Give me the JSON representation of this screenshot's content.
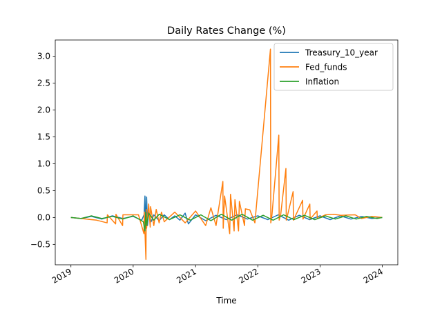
{
  "chart_data": {
    "type": "line",
    "title": "Daily Rates Change (%)",
    "xlabel": "Time",
    "ylabel": "",
    "xlim": [
      "2018-10-01",
      "2024-04-01"
    ],
    "ylim": [
      -0.88,
      3.3
    ],
    "x_ticks": [
      {
        "value": "2019-01-01",
        "label": "2019"
      },
      {
        "value": "2020-01-01",
        "label": "2020"
      },
      {
        "value": "2021-01-01",
        "label": "2021"
      },
      {
        "value": "2022-01-01",
        "label": "2022"
      },
      {
        "value": "2023-01-01",
        "label": "2023"
      },
      {
        "value": "2024-01-01",
        "label": "2024"
      }
    ],
    "y_ticks": [
      -0.5,
      0.0,
      0.5,
      1.0,
      1.5,
      2.0,
      2.5,
      3.0
    ],
    "y_tick_labels": [
      "−0.5",
      "0.0",
      "0.5",
      "1.0",
      "1.5",
      "2.0",
      "2.5",
      "3.0"
    ],
    "legend_position": "upper-right",
    "grid": false,
    "series": [
      {
        "name": "Treasury_10_year",
        "color": "#1f77b4",
        "x": [
          "2019-01-01",
          "2019-03-01",
          "2019-05-01",
          "2019-07-01",
          "2019-09-01",
          "2019-11-01",
          "2020-01-01",
          "2020-02-20",
          "2020-03-05",
          "2020-03-10",
          "2020-03-15",
          "2020-03-20",
          "2020-03-25",
          "2020-04-01",
          "2020-04-15",
          "2020-05-01",
          "2020-06-01",
          "2020-07-01",
          "2020-08-01",
          "2020-09-01",
          "2020-10-01",
          "2020-11-01",
          "2020-11-20",
          "2021-01-01",
          "2021-03-01",
          "2021-05-01",
          "2021-07-01",
          "2021-09-01",
          "2021-11-01",
          "2022-01-01",
          "2022-03-01",
          "2022-05-01",
          "2022-07-01",
          "2022-09-01",
          "2022-11-01",
          "2023-01-01",
          "2023-03-01",
          "2023-05-01",
          "2023-07-01",
          "2023-09-01",
          "2023-11-01",
          "2024-01-01"
        ],
        "values": [
          0.0,
          -0.02,
          0.02,
          -0.03,
          0.03,
          -0.02,
          0.02,
          -0.05,
          0.05,
          0.4,
          -0.2,
          0.38,
          -0.15,
          0.1,
          -0.08,
          0.05,
          -0.06,
          0.05,
          -0.04,
          0.03,
          -0.05,
          0.08,
          -0.12,
          0.05,
          -0.06,
          0.04,
          -0.04,
          0.05,
          -0.03,
          0.03,
          -0.04,
          0.05,
          -0.05,
          0.04,
          -0.04,
          0.03,
          -0.04,
          0.03,
          -0.03,
          0.02,
          -0.02,
          0.0
        ]
      },
      {
        "name": "Fed_funds",
        "color": "#ff7f0e",
        "x": [
          "2019-01-01",
          "2019-06-01",
          "2019-08-01",
          "2019-08-03",
          "2019-09-20",
          "2019-09-22",
          "2019-10-31",
          "2019-11-02",
          "2020-02-01",
          "2020-03-04",
          "2020-03-06",
          "2020-03-16",
          "2020-03-18",
          "2020-03-20",
          "2020-04-01",
          "2020-04-10",
          "2020-04-12",
          "2020-05-01",
          "2020-05-15",
          "2020-06-01",
          "2020-06-15",
          "2020-07-01",
          "2020-09-01",
          "2020-11-01",
          "2021-01-01",
          "2021-03-01",
          "2021-04-01",
          "2021-05-01",
          "2021-06-10",
          "2021-06-12",
          "2021-06-20",
          "2021-07-20",
          "2021-07-25",
          "2021-08-15",
          "2021-08-20",
          "2021-09-10",
          "2021-09-15",
          "2021-10-15",
          "2021-10-20",
          "2021-11-15",
          "2021-12-15",
          "2022-03-16",
          "2022-03-18",
          "2022-03-25",
          "2022-05-04",
          "2022-05-06",
          "2022-05-15",
          "2022-06-15",
          "2022-06-17",
          "2022-06-25",
          "2022-07-27",
          "2022-07-29",
          "2022-09-21",
          "2022-09-23",
          "2022-11-02",
          "2022-11-04",
          "2022-12-14",
          "2022-12-16",
          "2023-02-01",
          "2023-03-22",
          "2023-05-03",
          "2023-07-26",
          "2023-09-01",
          "2023-11-01",
          "2024-01-01"
        ],
        "values": [
          0.0,
          -0.05,
          -0.1,
          0.05,
          -0.12,
          0.06,
          -0.15,
          0.05,
          0.05,
          -0.3,
          0.1,
          -0.78,
          0.15,
          -0.2,
          0.25,
          -0.18,
          0.2,
          -0.15,
          0.15,
          -0.1,
          0.1,
          -0.08,
          0.1,
          -0.1,
          0.12,
          -0.15,
          0.18,
          -0.15,
          0.67,
          -0.2,
          0.4,
          -0.3,
          0.43,
          -0.25,
          0.33,
          -0.25,
          0.3,
          -0.15,
          0.16,
          0.14,
          -0.1,
          3.13,
          -0.1,
          0.05,
          1.53,
          -0.05,
          0.05,
          0.91,
          -0.05,
          0.05,
          0.48,
          -0.05,
          0.32,
          -0.03,
          0.25,
          -0.03,
          0.12,
          -0.02,
          0.05,
          0.06,
          0.04,
          0.05,
          -0.02,
          0.02,
          0.0
        ]
      },
      {
        "name": "Inflation",
        "color": "#2ca02c",
        "x": [
          "2019-01-01",
          "2019-03-01",
          "2019-05-01",
          "2019-07-01",
          "2019-09-01",
          "2019-11-01",
          "2020-01-01",
          "2020-03-01",
          "2020-03-10",
          "2020-03-15",
          "2020-03-20",
          "2020-04-01",
          "2020-05-01",
          "2020-06-01",
          "2020-08-01",
          "2020-10-01",
          "2020-12-01",
          "2021-02-01",
          "2021-04-01",
          "2021-06-01",
          "2021-08-01",
          "2021-10-01",
          "2021-12-01",
          "2022-02-01",
          "2022-04-01",
          "2022-06-01",
          "2022-08-01",
          "2022-10-01",
          "2022-12-01",
          "2023-02-01",
          "2023-04-01",
          "2023-06-01",
          "2023-08-01",
          "2023-10-01",
          "2023-12-01",
          "2024-01-01"
        ],
        "values": [
          0.0,
          -0.02,
          0.03,
          -0.02,
          0.02,
          -0.03,
          0.03,
          -0.08,
          -0.25,
          0.1,
          -0.15,
          0.08,
          -0.05,
          0.06,
          -0.04,
          0.05,
          -0.05,
          0.05,
          -0.06,
          0.06,
          -0.05,
          0.06,
          -0.05,
          0.04,
          -0.05,
          0.05,
          -0.04,
          0.04,
          -0.04,
          0.03,
          -0.03,
          0.03,
          -0.03,
          0.02,
          -0.02,
          0.0
        ]
      }
    ]
  }
}
